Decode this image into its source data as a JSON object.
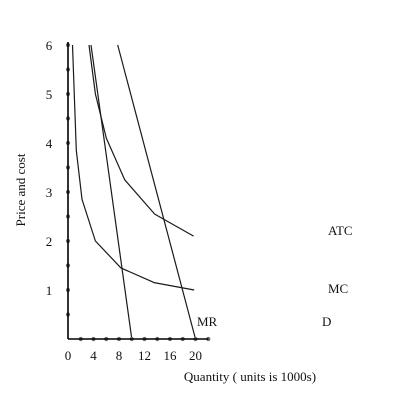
{
  "chart_data": {
    "type": "line",
    "title": "",
    "xlabel": "Quantity ( units is 1000s)",
    "ylabel": "Price and cost",
    "xlim": [
      0,
      22
    ],
    "ylim": [
      0,
      6
    ],
    "x_ticks": [
      0,
      4,
      8,
      12,
      16,
      20
    ],
    "y_ticks": [
      1,
      2,
      3,
      4,
      5,
      6
    ],
    "grid": false,
    "series": [
      {
        "name": "ATC",
        "x": [
          3.3,
          4.3,
          6.0,
          8.9,
          13.6,
          19.7
        ],
        "y": [
          6.0,
          5.0,
          4.1,
          3.25,
          2.55,
          2.1
        ]
      },
      {
        "name": "MC",
        "x": [
          0.7,
          1.3,
          2.2,
          4.3,
          8.3,
          13.5,
          19.8
        ],
        "y": [
          6.0,
          3.85,
          2.85,
          2.0,
          1.45,
          1.15,
          1.0
        ]
      },
      {
        "name": "MR",
        "x": [
          3.6,
          10.0
        ],
        "y": [
          6.0,
          0.0
        ]
      },
      {
        "name": "D",
        "x": [
          7.8,
          20.0
        ],
        "y": [
          6.0,
          0.0
        ]
      }
    ]
  }
}
